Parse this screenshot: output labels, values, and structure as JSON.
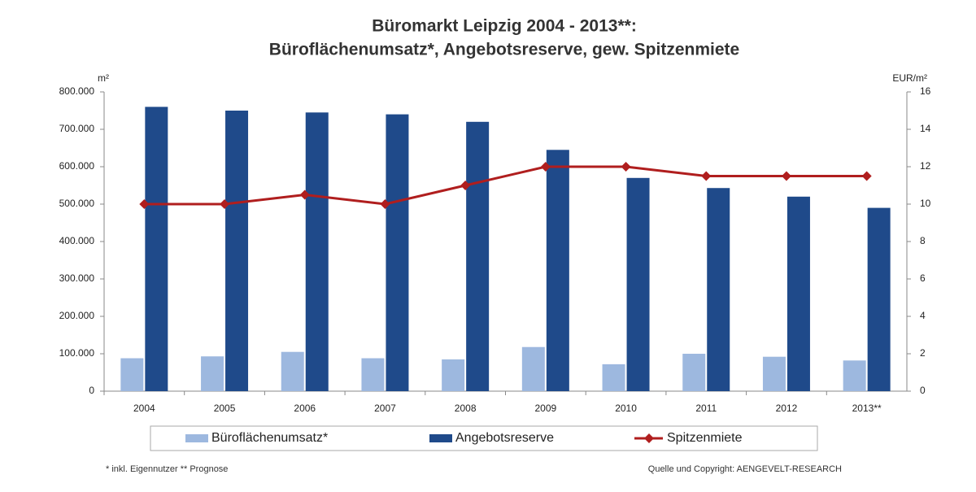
{
  "chart_data": {
    "type": "bar",
    "title": "Büromarkt Leipzig 2004 - 2013**:",
    "subtitle": "Büroflächenumsatz*, Angebotsreserve, gew. Spitzenmiete",
    "y_label": "m²",
    "y2_label": "EUR/m²",
    "categories": [
      "2004",
      "2005",
      "2006",
      "2007",
      "2008",
      "2009",
      "2010",
      "2011",
      "2012",
      "2013**"
    ],
    "series": [
      {
        "name": "Büroflächenumsatz*",
        "color": "#9db8df",
        "type": "bar",
        "values": [
          88000,
          93000,
          105000,
          88000,
          85000,
          118000,
          72000,
          100000,
          92000,
          82000
        ]
      },
      {
        "name": "Angebotsreserve",
        "color": "#1f4a8a",
        "type": "bar",
        "values": [
          760000,
          750000,
          745000,
          740000,
          720000,
          645000,
          570000,
          543000,
          520000,
          490000
        ]
      },
      {
        "name": "Spitzenmiete",
        "color": "#b01e1e",
        "type": "line",
        "axis": "y2",
        "values": [
          10,
          10,
          10.5,
          10,
          11,
          12,
          12,
          11.5,
          11.5,
          11.5
        ]
      }
    ],
    "ylim": [
      0,
      800000
    ],
    "yticks": [
      0,
      {
        "value": 100000,
        "label": "100.000"
      },
      {
        "value": 200000,
        "label": "200.000"
      },
      {
        "value": 300000,
        "label": "300.000"
      },
      {
        "value": 400000,
        "label": "400.000"
      },
      {
        "value": 500000,
        "label": "500.000"
      },
      {
        "value": 600000,
        "label": "600.000"
      },
      {
        "value": 700000,
        "label": "700.000"
      },
      {
        "value": 800000,
        "label": "800.000"
      }
    ],
    "y2lim": [
      0,
      16
    ],
    "y2ticks": [
      0,
      2,
      4,
      6,
      8,
      10,
      12,
      14,
      16
    ],
    "grid": false,
    "legend": "bottom",
    "footnote": "* inkl. Eigennutzer   ** Prognose",
    "source": "Quelle und Copyright: AENGEVELT-RESEARCH"
  }
}
